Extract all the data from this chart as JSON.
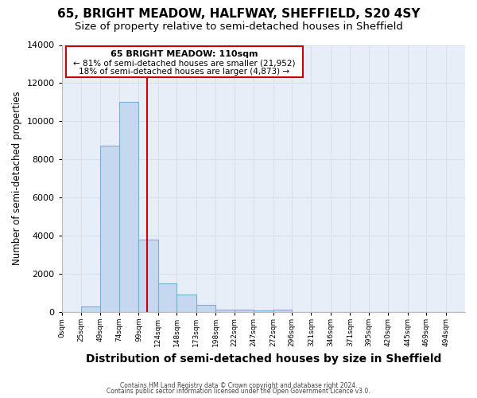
{
  "title": "65, BRIGHT MEADOW, HALFWAY, SHEFFIELD, S20 4SY",
  "subtitle": "Size of property relative to semi-detached houses in Sheffield",
  "xlabel": "Distribution of semi-detached houses by size in Sheffield",
  "ylabel": "Number of semi-detached properties",
  "footnote1": "Contains HM Land Registry data © Crown copyright and database right 2024.",
  "footnote2": "Contains public sector information licensed under the Open Government Licence v3.0.",
  "annotation_title": "65 BRIGHT MEADOW: 110sqm",
  "annotation_line1": "← 81% of semi-detached houses are smaller (21,952)",
  "annotation_line2": "18% of semi-detached houses are larger (4,873) →",
  "property_size": 110,
  "bins": [
    0,
    25,
    49,
    74,
    99,
    124,
    148,
    173,
    198,
    222,
    247,
    272,
    296,
    321,
    346,
    371,
    395,
    420,
    445,
    469,
    494,
    519
  ],
  "bar_heights": [
    0,
    300,
    8700,
    11000,
    3800,
    1500,
    900,
    370,
    130,
    100,
    80,
    130,
    0,
    0,
    0,
    0,
    0,
    0,
    0,
    0,
    0
  ],
  "bar_color": "#c5d8f0",
  "bar_edge_color": "#7aafd4",
  "vline_color": "#cc0000",
  "vline_x": 110,
  "annotation_box_color": "#cc0000",
  "annotation_fill": "#ffffff",
  "ylim": [
    0,
    14000
  ],
  "xlim": [
    0,
    519
  ],
  "tick_labels": [
    "0sqm",
    "25sqm",
    "49sqm",
    "74sqm",
    "99sqm",
    "124sqm",
    "148sqm",
    "173sqm",
    "198sqm",
    "222sqm",
    "247sqm",
    "272sqm",
    "296sqm",
    "321sqm",
    "346sqm",
    "371sqm",
    "395sqm",
    "420sqm",
    "445sqm",
    "469sqm",
    "494sqm"
  ],
  "tick_positions": [
    0,
    25,
    49,
    74,
    99,
    124,
    148,
    173,
    198,
    222,
    247,
    272,
    296,
    321,
    346,
    371,
    395,
    420,
    445,
    469,
    494
  ],
  "yticks": [
    0,
    2000,
    4000,
    6000,
    8000,
    10000,
    12000,
    14000
  ],
  "grid_color": "#d4dff0",
  "plot_bg_color": "#e8eef8",
  "figure_bg_color": "#ffffff",
  "title_fontsize": 11,
  "subtitle_fontsize": 9.5,
  "xlabel_fontsize": 10,
  "ylabel_fontsize": 8.5
}
